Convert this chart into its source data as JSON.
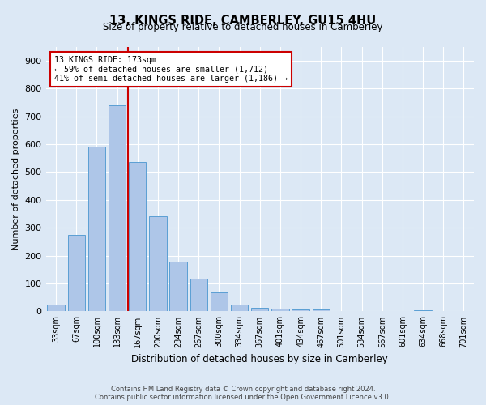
{
  "title": "13, KINGS RIDE, CAMBERLEY, GU15 4HU",
  "subtitle": "Size of property relative to detached houses in Camberley",
  "xlabel": "Distribution of detached houses by size in Camberley",
  "ylabel": "Number of detached properties",
  "bar_labels": [
    "33sqm",
    "67sqm",
    "100sqm",
    "133sqm",
    "167sqm",
    "200sqm",
    "234sqm",
    "267sqm",
    "300sqm",
    "334sqm",
    "367sqm",
    "401sqm",
    "434sqm",
    "467sqm",
    "501sqm",
    "534sqm",
    "567sqm",
    "601sqm",
    "634sqm",
    "668sqm",
    "701sqm"
  ],
  "bar_values": [
    25,
    275,
    590,
    740,
    535,
    340,
    178,
    118,
    68,
    25,
    13,
    10,
    7,
    7,
    2,
    0,
    0,
    0,
    5,
    0,
    0
  ],
  "bar_color": "#aec6e8",
  "bar_edge_color": "#5a9fd4",
  "property_line_label": "13 KINGS RIDE: 173sqm",
  "annotation_line1": "← 59% of detached houses are smaller (1,712)",
  "annotation_line2": "41% of semi-detached houses are larger (1,186) →",
  "annotation_box_color": "#ffffff",
  "annotation_box_edge_color": "#cc0000",
  "vertical_line_color": "#cc0000",
  "vertical_line_x": 3.55,
  "ylim": [
    0,
    950
  ],
  "yticks": [
    0,
    100,
    200,
    300,
    400,
    500,
    600,
    700,
    800,
    900
  ],
  "background_color": "#dce8f5",
  "plot_background_color": "#dce8f5",
  "grid_color": "#ffffff",
  "footer_line1": "Contains HM Land Registry data © Crown copyright and database right 2024.",
  "footer_line2": "Contains public sector information licensed under the Open Government Licence v3.0."
}
